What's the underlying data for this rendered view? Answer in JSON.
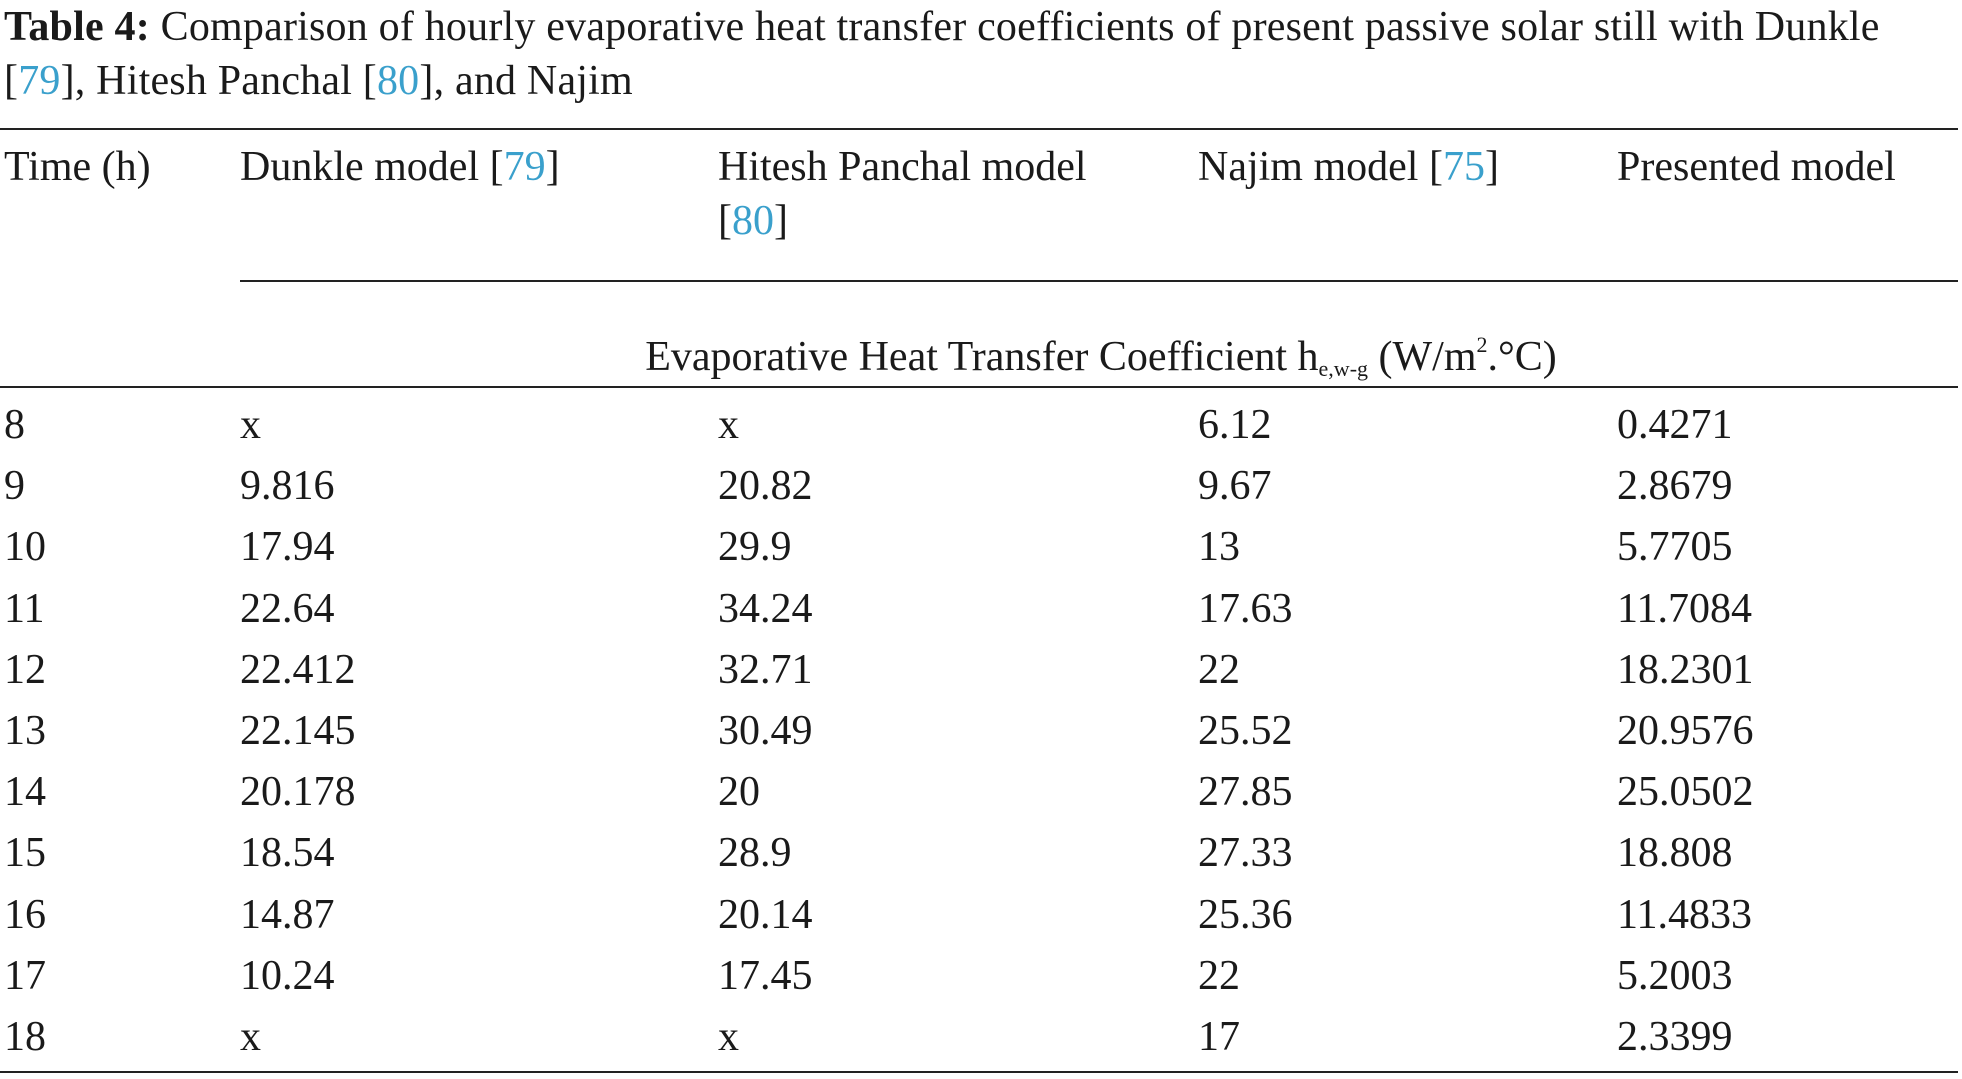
{
  "caption": {
    "label": "Table 4:",
    "text1": " Comparison of hourly evaporative heat transfer coefficients of present passive solar still with Dunkle [",
    "ref1": "79",
    "text2": "], Hitesh Panchal [",
    "ref2": "80",
    "text3": "], and Najim"
  },
  "header": {
    "time": "Time (h)",
    "dunkle": "Dunkle model [",
    "dunkle_ref": "79",
    "hitesh": "Hitesh Panchal model",
    "hitesh_ref": "80",
    "najim": "Najim model [",
    "najim_ref": "75",
    "presented": "Presented model",
    "close_bracket": "]",
    "open_bracket": "["
  },
  "unit_row": {
    "text": "Evaporative Heat Transfer Coefficient h",
    "sub": "e,w-g",
    "unit_a": " (W/m",
    "sup": "2",
    "unit_b": ".°C)"
  },
  "rows": [
    {
      "time": "8",
      "dunkle": "x",
      "hitesh": "x",
      "najim": "6.12",
      "presented": "0.4271"
    },
    {
      "time": "9",
      "dunkle": "9.816",
      "hitesh": "20.82",
      "najim": "9.67",
      "presented": "2.8679"
    },
    {
      "time": "10",
      "dunkle": "17.94",
      "hitesh": "29.9",
      "najim": "13",
      "presented": "5.7705"
    },
    {
      "time": "11",
      "dunkle": "22.64",
      "hitesh": "34.24",
      "najim": "17.63",
      "presented": "11.7084"
    },
    {
      "time": "12",
      "dunkle": "22.412",
      "hitesh": "32.71",
      "najim": "22",
      "presented": "18.2301"
    },
    {
      "time": "13",
      "dunkle": "22.145",
      "hitesh": "30.49",
      "najim": "25.52",
      "presented": "20.9576"
    },
    {
      "time": "14",
      "dunkle": "20.178",
      "hitesh": "20",
      "najim": "27.85",
      "presented": "25.0502"
    },
    {
      "time": "15",
      "dunkle": "18.54",
      "hitesh": "28.9",
      "najim": "27.33",
      "presented": "18.808"
    },
    {
      "time": "16",
      "dunkle": "14.87",
      "hitesh": "20.14",
      "najim": "25.36",
      "presented": "11.4833"
    },
    {
      "time": "17",
      "dunkle": "10.24",
      "hitesh": "17.45",
      "najim": "22",
      "presented": "5.2003"
    },
    {
      "time": "18",
      "dunkle": "x",
      "hitesh": "x",
      "najim": "17",
      "presented": "2.3399"
    }
  ],
  "colors": {
    "text": "#1a1a1a",
    "ref_link": "#3aa0cc",
    "rule": "#222222"
  }
}
